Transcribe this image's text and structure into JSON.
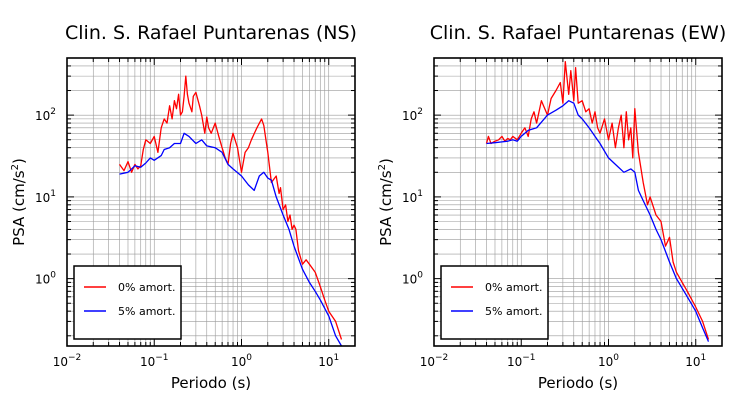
{
  "chart_data": [
    {
      "type": "line",
      "title": "Clin. S. Rafael Puntarenas (NS)",
      "xlabel": "Periodo (s)",
      "ylabel_main": "PSA (cm/s",
      "ylabel_sup": "2",
      "ylabel_tail": ")",
      "xscale": "log",
      "yscale": "log",
      "xlim": [
        0.01,
        20
      ],
      "ylim": [
        0.15,
        500
      ],
      "grid": true,
      "legend_position": "bottom-left",
      "xticks": [
        {
          "value": 0.01,
          "base": "10",
          "exp": "−2"
        },
        {
          "value": 0.1,
          "base": "10",
          "exp": "−1"
        },
        {
          "value": 1,
          "base": "10",
          "exp": "0"
        },
        {
          "value": 10,
          "base": "10",
          "exp": "1"
        }
      ],
      "yticks": [
        {
          "value": 1,
          "base": "10",
          "exp": "0"
        },
        {
          "value": 10,
          "base": "10",
          "exp": "1"
        },
        {
          "value": 100,
          "base": "10",
          "exp": "2"
        }
      ],
      "series": [
        {
          "name": "0% amort.",
          "color": "#ff0000",
          "x": [
            0.04,
            0.045,
            0.05,
            0.055,
            0.06,
            0.065,
            0.07,
            0.075,
            0.08,
            0.09,
            0.1,
            0.11,
            0.12,
            0.13,
            0.14,
            0.15,
            0.16,
            0.17,
            0.18,
            0.19,
            0.2,
            0.21,
            0.22,
            0.23,
            0.24,
            0.25,
            0.27,
            0.28,
            0.3,
            0.33,
            0.35,
            0.38,
            0.4,
            0.42,
            0.45,
            0.5,
            0.55,
            0.6,
            0.65,
            0.7,
            0.75,
            0.8,
            0.9,
            1.0,
            1.1,
            1.2,
            1.3,
            1.5,
            1.7,
            1.8,
            2.0,
            2.2,
            2.5,
            2.7,
            2.8,
            3.0,
            3.2,
            3.4,
            3.6,
            3.8,
            4.0,
            4.2,
            4.5,
            5.0,
            5.5,
            6.0,
            7.0,
            8.0,
            9.0,
            10.0,
            12.0,
            14.0
          ],
          "y": [
            25,
            21,
            27,
            20,
            25,
            22,
            24,
            38,
            50,
            45,
            55,
            35,
            70,
            90,
            80,
            130,
            90,
            150,
            120,
            180,
            100,
            110,
            170,
            300,
            180,
            140,
            110,
            170,
            190,
            130,
            100,
            60,
            95,
            70,
            60,
            80,
            55,
            40,
            30,
            25,
            45,
            60,
            40,
            20,
            35,
            40,
            50,
            70,
            90,
            75,
            35,
            15,
            18,
            11,
            13,
            7,
            8,
            5,
            6,
            4,
            4.5,
            4,
            2.2,
            1.5,
            1.7,
            1.5,
            1.2,
            0.8,
            0.55,
            0.4,
            0.3,
            0.18
          ]
        },
        {
          "name": "5% amort.",
          "color": "#0000ff",
          "x": [
            0.04,
            0.05,
            0.06,
            0.07,
            0.08,
            0.09,
            0.1,
            0.12,
            0.13,
            0.15,
            0.17,
            0.2,
            0.22,
            0.25,
            0.3,
            0.35,
            0.4,
            0.5,
            0.6,
            0.7,
            0.8,
            1.0,
            1.2,
            1.4,
            1.6,
            1.8,
            2.0,
            2.2,
            2.5,
            3.0,
            3.5,
            4.0,
            5.0,
            6.0,
            7.0,
            8.0,
            10.0,
            12.0,
            14.0
          ],
          "y": [
            19,
            20,
            24,
            23,
            26,
            30,
            28,
            32,
            38,
            40,
            45,
            45,
            60,
            55,
            45,
            50,
            42,
            40,
            35,
            25,
            22,
            18,
            14,
            12,
            18,
            20,
            17,
            16,
            10,
            6,
            4,
            2.5,
            1.3,
            0.9,
            0.7,
            0.55,
            0.35,
            0.2,
            0.15
          ]
        }
      ]
    },
    {
      "type": "line",
      "title": "Clin. S. Rafael Puntarenas (EW)",
      "xlabel": "Periodo (s)",
      "ylabel_main": "PSA (cm/s",
      "ylabel_sup": "2",
      "ylabel_tail": ")",
      "xscale": "log",
      "yscale": "log",
      "xlim": [
        0.01,
        20
      ],
      "ylim": [
        0.15,
        500
      ],
      "grid": true,
      "legend_position": "bottom-left",
      "xticks": [
        {
          "value": 0.01,
          "base": "10",
          "exp": "−2"
        },
        {
          "value": 0.1,
          "base": "10",
          "exp": "−1"
        },
        {
          "value": 1,
          "base": "10",
          "exp": "0"
        },
        {
          "value": 10,
          "base": "10",
          "exp": "1"
        }
      ],
      "yticks": [
        {
          "value": 1,
          "base": "10",
          "exp": "0"
        },
        {
          "value": 10,
          "base": "10",
          "exp": "1"
        },
        {
          "value": 100,
          "base": "10",
          "exp": "2"
        }
      ],
      "series": [
        {
          "name": "0% amort.",
          "color": "#ff0000",
          "x": [
            0.04,
            0.042,
            0.045,
            0.05,
            0.055,
            0.06,
            0.065,
            0.07,
            0.075,
            0.08,
            0.09,
            0.1,
            0.11,
            0.12,
            0.13,
            0.14,
            0.15,
            0.17,
            0.2,
            0.22,
            0.25,
            0.28,
            0.3,
            0.32,
            0.35,
            0.37,
            0.4,
            0.42,
            0.45,
            0.5,
            0.55,
            0.6,
            0.65,
            0.7,
            0.75,
            0.8,
            0.9,
            1.0,
            1.1,
            1.2,
            1.3,
            1.4,
            1.5,
            1.6,
            1.7,
            1.8,
            1.9,
            2.0,
            2.2,
            2.5,
            2.8,
            3.0,
            3.5,
            4.0,
            4.5,
            5.0,
            5.5,
            6.0,
            7.0,
            8.0,
            10.0,
            12.0,
            14.0
          ],
          "y": [
            45,
            55,
            45,
            48,
            50,
            55,
            48,
            52,
            50,
            55,
            50,
            60,
            70,
            55,
            90,
            110,
            80,
            150,
            100,
            160,
            200,
            250,
            140,
            450,
            180,
            350,
            150,
            380,
            140,
            150,
            110,
            120,
            80,
            110,
            70,
            60,
            90,
            50,
            80,
            40,
            70,
            100,
            40,
            110,
            50,
            70,
            30,
            120,
            35,
            15,
            8,
            10,
            6,
            5,
            2.5,
            3.2,
            1.6,
            1.2,
            0.9,
            0.7,
            0.45,
            0.3,
            0.18
          ]
        },
        {
          "name": "5% amort.",
          "color": "#0000ff",
          "x": [
            0.04,
            0.05,
            0.06,
            0.07,
            0.08,
            0.09,
            0.1,
            0.12,
            0.15,
            0.2,
            0.25,
            0.3,
            0.35,
            0.4,
            0.45,
            0.5,
            0.6,
            0.7,
            0.8,
            1.0,
            1.2,
            1.5,
            1.8,
            2.0,
            2.2,
            2.5,
            3.0,
            3.5,
            4.0,
            5.0,
            6.0,
            8.0,
            10.0,
            12.0,
            14.0
          ],
          "y": [
            45,
            46,
            47,
            48,
            50,
            48,
            55,
            65,
            70,
            100,
            115,
            130,
            150,
            140,
            100,
            90,
            70,
            55,
            45,
            30,
            25,
            20,
            22,
            20,
            12,
            9,
            6,
            4,
            3,
            1.6,
            1,
            0.6,
            0.4,
            0.25,
            0.17
          ]
        }
      ]
    }
  ]
}
